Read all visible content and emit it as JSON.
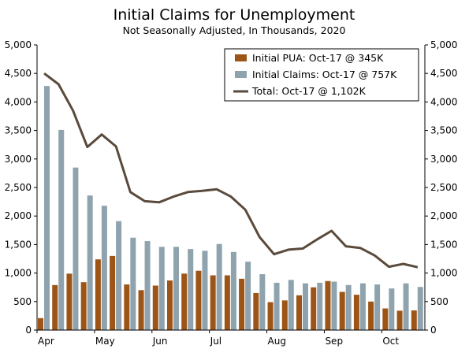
{
  "chart_data": {
    "type": "bar",
    "title": "Initial Claims for Unemployment",
    "subtitle": "Not Seasonally Adjusted, In Thousands, 2020",
    "ylim": [
      0,
      5000
    ],
    "yticks": [
      "0",
      "500",
      "1,000",
      "1,500",
      "2,000",
      "2,500",
      "3,000",
      "3,500",
      "4,000",
      "4,500",
      "5,000"
    ],
    "ytick_values": [
      0,
      500,
      1000,
      1500,
      2000,
      2500,
      3000,
      3500,
      4000,
      4500,
      5000
    ],
    "x_month_labels": [
      "Apr",
      "May",
      "Jun",
      "Jul",
      "Aug",
      "Sep",
      "Oct"
    ],
    "x_month_start_index": [
      0,
      4,
      8,
      12,
      16,
      20,
      24
    ],
    "grid": false,
    "legend_placement": "top-right",
    "colors": {
      "pua": "#9c5516",
      "claims": "#8fa3ae",
      "total": "#5a4a3c"
    },
    "legend": [
      "Initial PUA: Oct-17 @ 345K",
      "Initial Claims: Oct-17 @ 757K",
      "Total: Oct-17 @ 1,102K"
    ],
    "series": [
      {
        "type": "bar",
        "values": [
          210,
          790,
          990,
          840,
          1240,
          1300,
          800,
          700,
          780,
          870,
          990,
          1040,
          960,
          960,
          900,
          650,
          490,
          520,
          610,
          750,
          860,
          670,
          620,
          500,
          380,
          340,
          345
        ]
      },
      {
        "type": "bar",
        "values": [
          4280,
          3510,
          2850,
          2360,
          2180,
          1910,
          1620,
          1560,
          1460,
          1460,
          1420,
          1390,
          1510,
          1370,
          1200,
          980,
          830,
          880,
          820,
          830,
          850,
          790,
          820,
          800,
          730,
          820,
          757
        ]
      },
      {
        "type": "line",
        "values": [
          4500,
          4310,
          3850,
          3210,
          3430,
          3220,
          2420,
          2260,
          2240,
          2340,
          2420,
          2440,
          2470,
          2340,
          2110,
          1630,
          1330,
          1410,
          1430,
          1590,
          1740,
          1470,
          1440,
          1310,
          1110,
          1160,
          1102
        ]
      }
    ]
  }
}
